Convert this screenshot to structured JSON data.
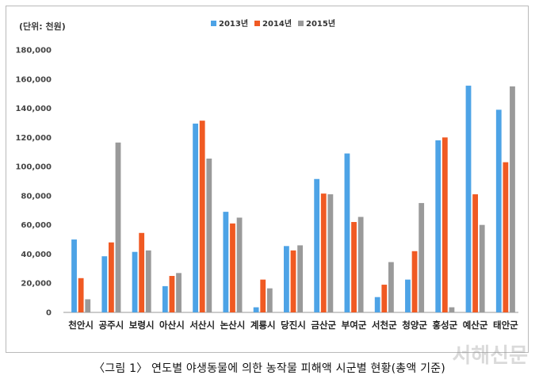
{
  "caption": "〈그림 1〉 연도별 야생동물에 의한 농작물 피해액 시군별 현황(총액 기준)",
  "watermark": "서해신문",
  "chart_data": {
    "type": "bar",
    "unit_label": "(단위: 천원)",
    "categories": [
      "천안시",
      "공주시",
      "보령시",
      "아산시",
      "서산시",
      "논산시",
      "계룡시",
      "당진시",
      "금산군",
      "부여군",
      "서천군",
      "청양군",
      "홍성군",
      "예산군",
      "태안군"
    ],
    "series": [
      {
        "name": "2013년",
        "color": "#4da3e6",
        "values": [
          50000,
          38500,
          41500,
          18000,
          129500,
          69000,
          3500,
          45500,
          91500,
          109000,
          10500,
          22500,
          118000,
          155500,
          139000
        ]
      },
      {
        "name": "2014년",
        "color": "#f05a23",
        "values": [
          23500,
          48000,
          54500,
          25000,
          131500,
          61000,
          22500,
          42500,
          81500,
          62000,
          19000,
          42000,
          120000,
          81000,
          103000
        ]
      },
      {
        "name": "2015년",
        "color": "#9a9a9a",
        "values": [
          9000,
          116500,
          42500,
          27000,
          105500,
          65000,
          16500,
          46000,
          81000,
          65500,
          34500,
          75000,
          3500,
          60000,
          155000
        ]
      }
    ],
    "yticks": [
      "0",
      "20,000",
      "40,000",
      "60,000",
      "80,000",
      "100,000",
      "120,000",
      "140,000",
      "160,000",
      "180,000"
    ],
    "ylim": [
      0,
      180000
    ],
    "grid": false,
    "legend_position": "top-center"
  }
}
